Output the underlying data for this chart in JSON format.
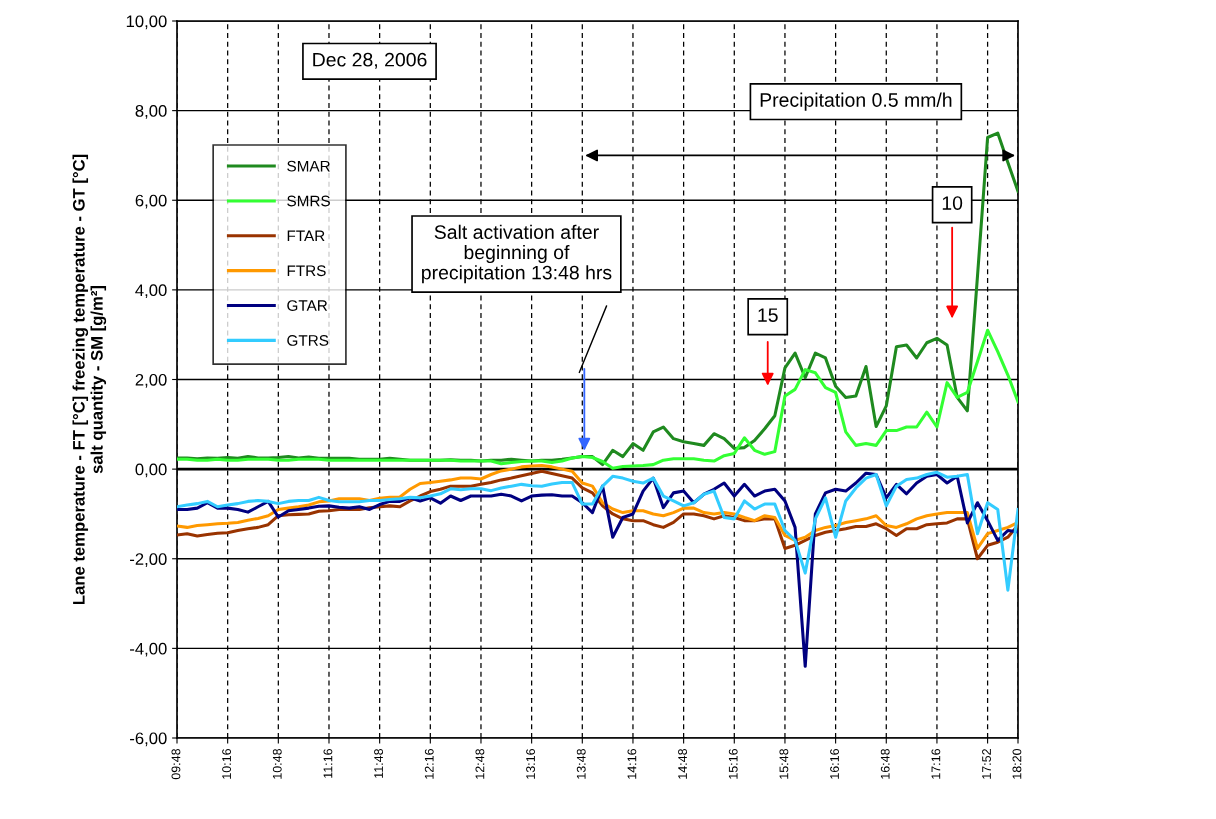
{
  "chart_data": {
    "type": "line",
    "ylabel": "Lane temperature - FT [°C] freezing temperature - GT [°C]\nsalt quantity - SM [g/m²]",
    "categories": [
      "09:48",
      null,
      null,
      null,
      null,
      "10:16",
      null,
      null,
      null,
      null,
      "10:48",
      null,
      null,
      null,
      null,
      "11:16",
      null,
      null,
      null,
      null,
      "11:48",
      null,
      null,
      null,
      null,
      "12:16",
      null,
      null,
      null,
      null,
      "12:48",
      null,
      null,
      null,
      null,
      "13:16",
      null,
      null,
      null,
      null,
      "13:48",
      null,
      null,
      null,
      null,
      "14:16",
      null,
      null,
      null,
      null,
      "14:48",
      null,
      null,
      null,
      null,
      "15:16",
      null,
      null,
      null,
      null,
      "15:48",
      null,
      null,
      null,
      null,
      "16:16",
      null,
      null,
      null,
      null,
      "16:48",
      null,
      null,
      null,
      null,
      "17:16",
      null,
      null,
      null,
      null,
      "17:52",
      null,
      null,
      "18:20"
    ],
    "series": [
      {
        "name": "SMAR",
        "color": "#1f8a1f",
        "values": [
          0.25,
          0.25,
          0.23,
          0.25,
          0.24,
          0.26,
          0.24,
          0.28,
          0.25,
          0.25,
          0.26,
          0.28,
          0.25,
          0.27,
          0.24,
          0.24,
          0.24,
          0.24,
          0.22,
          0.22,
          0.22,
          0.24,
          0.22,
          0.2,
          0.2,
          0.2,
          0.2,
          0.21,
          0.2,
          0.2,
          0.18,
          0.2,
          0.2,
          0.22,
          0.2,
          0.18,
          0.2,
          0.2,
          0.22,
          0.25,
          0.28,
          0.28,
          0.1,
          0.42,
          0.28,
          0.57,
          0.42,
          0.83,
          0.94,
          0.68,
          0.61,
          0.57,
          0.53,
          0.79,
          0.68,
          0.46,
          0.48,
          0.64,
          0.9,
          1.19,
          2.26,
          2.59,
          2.04,
          2.59,
          2.48,
          1.85,
          1.6,
          1.63,
          2.29,
          0.95,
          1.41,
          2.73,
          2.77,
          2.48,
          2.82,
          2.92,
          2.77,
          1.6,
          1.3,
          4.3,
          7.4,
          7.5,
          6.84,
          6.2
        ]
      },
      {
        "name": "SMRS",
        "color": "#33ff33",
        "values": [
          0.22,
          0.22,
          0.2,
          0.2,
          0.22,
          0.2,
          0.2,
          0.22,
          0.22,
          0.22,
          0.2,
          0.2,
          0.22,
          0.22,
          0.22,
          0.2,
          0.2,
          0.2,
          0.2,
          0.2,
          0.2,
          0.2,
          0.2,
          0.2,
          0.2,
          0.2,
          0.2,
          0.2,
          0.18,
          0.18,
          0.18,
          0.18,
          0.12,
          0.15,
          0.17,
          0.18,
          0.18,
          0.15,
          0.18,
          0.25,
          0.28,
          0.26,
          0.17,
          0.02,
          0.06,
          0.07,
          0.08,
          0.1,
          0.2,
          0.23,
          0.23,
          0.23,
          0.2,
          0.18,
          0.3,
          0.35,
          0.7,
          0.42,
          0.33,
          0.39,
          1.63,
          1.78,
          2.22,
          2.15,
          1.82,
          1.71,
          0.83,
          0.53,
          0.57,
          0.53,
          0.86,
          0.86,
          0.94,
          0.94,
          1.27,
          0.94,
          1.93,
          1.6,
          1.71,
          2.4,
          3.1,
          2.62,
          2.1,
          1.5
        ]
      },
      {
        "name": "FTAR",
        "color": "#993300",
        "values": [
          -1.47,
          -1.44,
          -1.49,
          -1.46,
          -1.43,
          -1.42,
          -1.37,
          -1.33,
          -1.3,
          -1.24,
          -1.04,
          -1.02,
          -1.01,
          -1.0,
          -0.94,
          -0.93,
          -0.9,
          -0.9,
          -0.9,
          -0.86,
          -0.84,
          -0.82,
          -0.84,
          -0.71,
          -0.6,
          -0.5,
          -0.45,
          -0.38,
          -0.38,
          -0.38,
          -0.34,
          -0.3,
          -0.24,
          -0.2,
          -0.15,
          -0.1,
          -0.05,
          -0.1,
          -0.15,
          -0.2,
          -0.42,
          -0.53,
          -0.82,
          -1.0,
          -1.11,
          -1.15,
          -1.15,
          -1.24,
          -1.3,
          -1.19,
          -1.0,
          -1.0,
          -1.04,
          -1.11,
          -1.04,
          -1.08,
          -1.15,
          -1.15,
          -1.11,
          -1.11,
          -1.77,
          -1.7,
          -1.59,
          -1.48,
          -1.41,
          -1.37,
          -1.33,
          -1.28,
          -1.28,
          -1.22,
          -1.33,
          -1.48,
          -1.33,
          -1.33,
          -1.24,
          -1.22,
          -1.2,
          -1.11,
          -1.11,
          -2.0,
          -1.7,
          -1.63,
          -1.52,
          -1.25
        ]
      },
      {
        "name": "FTRS",
        "color": "#ff9900",
        "values": [
          -1.27,
          -1.3,
          -1.26,
          -1.24,
          -1.22,
          -1.21,
          -1.19,
          -1.14,
          -1.1,
          -1.04,
          -0.9,
          -0.87,
          -0.84,
          -0.8,
          -0.73,
          -0.71,
          -0.66,
          -0.66,
          -0.66,
          -0.7,
          -0.65,
          -0.63,
          -0.62,
          -0.45,
          -0.32,
          -0.3,
          -0.27,
          -0.24,
          -0.2,
          -0.2,
          -0.22,
          -0.12,
          -0.04,
          0.0,
          0.05,
          0.07,
          0.08,
          0.05,
          0.0,
          -0.05,
          -0.31,
          -0.38,
          -0.75,
          -0.89,
          -0.97,
          -0.93,
          -0.93,
          -1.0,
          -1.04,
          -0.97,
          -0.87,
          -0.87,
          -0.97,
          -1.0,
          -0.97,
          -1.0,
          -1.08,
          -1.15,
          -1.04,
          -1.08,
          -1.48,
          -1.59,
          -1.52,
          -1.37,
          -1.3,
          -1.26,
          -1.19,
          -1.15,
          -1.11,
          -1.04,
          -1.26,
          -1.3,
          -1.22,
          -1.11,
          -1.04,
          -1.0,
          -0.97,
          -0.97,
          -0.97,
          -1.77,
          -1.44,
          -1.37,
          -1.3,
          -1.19
        ]
      },
      {
        "name": "GTAR",
        "color": "#000080",
        "values": [
          -0.9,
          -0.9,
          -0.87,
          -0.75,
          -0.87,
          -0.87,
          -0.9,
          -0.96,
          -0.84,
          -0.72,
          -1.07,
          -0.93,
          -0.9,
          -0.87,
          -0.83,
          -0.82,
          -0.85,
          -0.87,
          -0.84,
          -0.9,
          -0.79,
          -0.72,
          -0.72,
          -0.64,
          -0.71,
          -0.64,
          -0.76,
          -0.6,
          -0.7,
          -0.6,
          -0.6,
          -0.6,
          -0.56,
          -0.6,
          -0.71,
          -0.6,
          -0.58,
          -0.57,
          -0.6,
          -0.6,
          -0.75,
          -0.97,
          -0.38,
          -1.52,
          -1.08,
          -1.0,
          -0.49,
          -0.2,
          -0.86,
          -0.53,
          -0.49,
          -0.75,
          -0.56,
          -0.45,
          -0.31,
          -0.6,
          -0.34,
          -0.6,
          -0.49,
          -0.45,
          -0.71,
          -1.3,
          -4.4,
          -1.0,
          -0.53,
          -0.45,
          -0.49,
          -0.31,
          -0.09,
          -0.12,
          -0.64,
          -0.34,
          -0.55,
          -0.31,
          -0.16,
          -0.12,
          -0.31,
          -0.16,
          -1.2,
          -0.75,
          -1.15,
          -1.59,
          -1.37,
          -1.4
        ]
      },
      {
        "name": "GTRS",
        "color": "#33ccff",
        "values": [
          -0.84,
          -0.8,
          -0.77,
          -0.72,
          -0.84,
          -0.8,
          -0.77,
          -0.72,
          -0.7,
          -0.72,
          -0.77,
          -0.72,
          -0.7,
          -0.7,
          -0.63,
          -0.7,
          -0.73,
          -0.73,
          -0.73,
          -0.7,
          -0.7,
          -0.68,
          -0.66,
          -0.63,
          -0.64,
          -0.6,
          -0.55,
          -0.44,
          -0.46,
          -0.44,
          -0.44,
          -0.48,
          -0.42,
          -0.38,
          -0.34,
          -0.37,
          -0.38,
          -0.33,
          -0.3,
          -0.3,
          -0.78,
          -0.78,
          -0.38,
          -0.16,
          -0.2,
          -0.27,
          -0.31,
          -0.2,
          -0.6,
          -0.71,
          -0.82,
          -0.75,
          -0.56,
          -0.49,
          -1.08,
          -1.11,
          -0.71,
          -0.89,
          -0.78,
          -0.78,
          -1.37,
          -1.59,
          -2.32,
          -1.11,
          -0.64,
          -1.52,
          -0.71,
          -0.42,
          -0.2,
          -0.12,
          -0.82,
          -0.38,
          -0.23,
          -0.2,
          -0.12,
          -0.07,
          -0.18,
          -0.16,
          -0.12,
          -1.44,
          -0.75,
          -0.9,
          -2.7,
          -0.9
        ]
      }
    ],
    "ylim": [
      -6,
      10
    ],
    "yticks": [
      {
        "value": -6,
        "label": "-6,00"
      },
      {
        "value": -4,
        "label": "-4,00"
      },
      {
        "value": -2,
        "label": "-2,00"
      },
      {
        "value": 0,
        "label": "0,00"
      },
      {
        "value": 2,
        "label": "2,00"
      },
      {
        "value": 4,
        "label": "4,00"
      },
      {
        "value": 6,
        "label": "6,00"
      },
      {
        "value": 8,
        "label": "8,00"
      },
      {
        "value": 10,
        "label": "10,00"
      }
    ],
    "ref_lines": [
      {
        "axis": "y",
        "value": 0,
        "color": "#000000"
      }
    ],
    "annotations": [
      "Dec 28, 2006",
      "Precipitation 0.5 mm/h",
      "Salt activation after\nbeginning of\nprecipitation 13:48 hrs",
      "15",
      "10"
    ],
    "grid": true,
    "legend": "top left",
    "marker": "none",
    "line_style": "solid"
  }
}
